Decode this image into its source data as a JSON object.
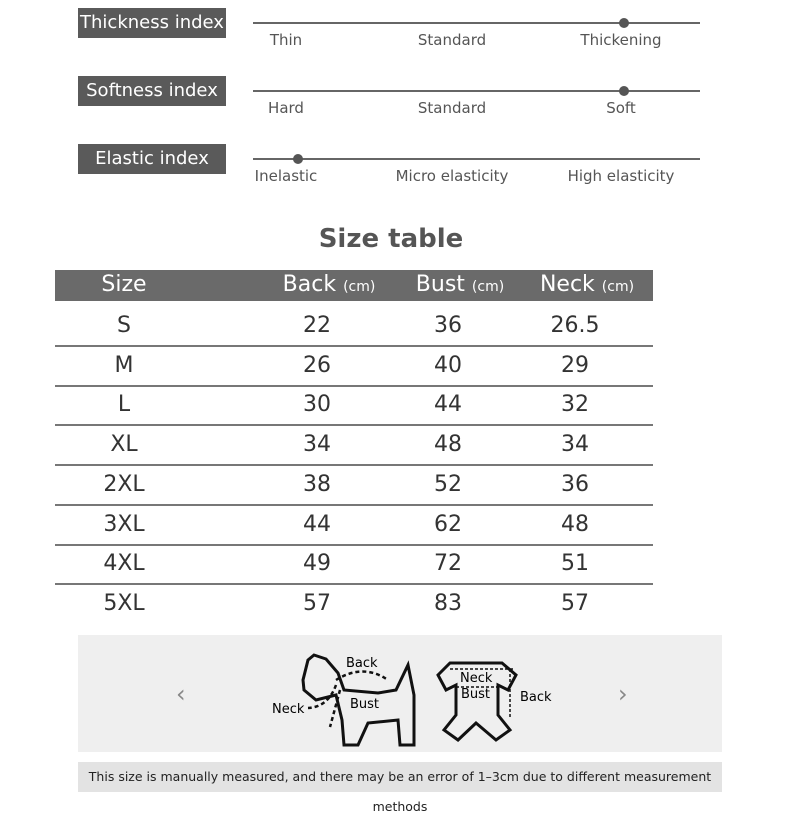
{
  "indices": [
    {
      "label": "Thickness index",
      "options": [
        "Thin",
        "Standard",
        "Thickening"
      ],
      "level": 0.83
    },
    {
      "label": "Softness index",
      "options": [
        "Hard",
        "Standard",
        "Soft"
      ],
      "level": 0.83
    },
    {
      "label": "Elastic index",
      "options": [
        "Inelastic",
        "Micro elasticity",
        "High elasticity"
      ],
      "level": 0.1
    }
  ],
  "table": {
    "title": "Size table",
    "headers": [
      {
        "name": "Size",
        "unit": ""
      },
      {
        "name": "Back",
        "unit": "(cm)"
      },
      {
        "name": "Bust",
        "unit": "(cm)"
      },
      {
        "name": "Neck",
        "unit": "(cm)"
      }
    ],
    "rows": [
      [
        "S",
        "22",
        "36",
        "26.5"
      ],
      [
        "M",
        "26",
        "40",
        "29"
      ],
      [
        "L",
        "30",
        "44",
        "32"
      ],
      [
        "XL",
        "34",
        "48",
        "34"
      ],
      [
        "2XL",
        "38",
        "52",
        "36"
      ],
      [
        "3XL",
        "44",
        "62",
        "48"
      ],
      [
        "4XL",
        "49",
        "72",
        "51"
      ],
      [
        "5XL",
        "57",
        "83",
        "57"
      ]
    ]
  },
  "diagram": {
    "dog_labels": {
      "back": "Back",
      "neck": "Neck",
      "bust": "Bust"
    },
    "garment_labels": {
      "neck": "Neck",
      "bust": "Bust",
      "back": "Back"
    },
    "prev_icon": "chevron-left-icon",
    "next_icon": "chevron-right-icon"
  },
  "note": "This size is manually measured, and there may be an error of 1–3cm due to different measurement methods"
}
